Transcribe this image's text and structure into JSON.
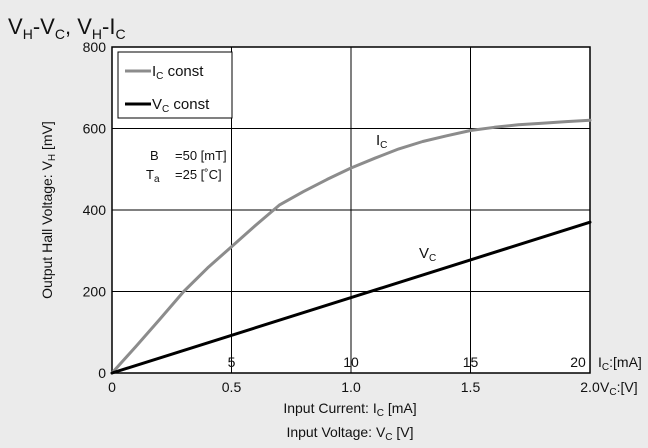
{
  "chart_data": {
    "type": "line",
    "title": {
      "base": "V",
      "sub_h": "H",
      "dash": "-",
      "sub_c": "C",
      "comma": ", "
    },
    "y_axis": {
      "label": "Output Hall Voltage: V",
      "label_sub": "H",
      "label_unit": " [mV]",
      "range": [
        0,
        800
      ],
      "ticks": [
        0,
        200,
        400,
        600,
        800
      ],
      "tick_labels": [
        "0",
        "200",
        "400",
        "600",
        "800"
      ]
    },
    "x_axis_current": {
      "label": "Input Current: I",
      "label_sub": "C",
      "label_unit": " [mA]",
      "range": [
        0,
        20
      ],
      "ticks": [
        5,
        10,
        15,
        20
      ],
      "tick_labels": [
        "5",
        "10",
        "15",
        "20"
      ],
      "unit_tag": "I",
      "unit_tag_sub": "C",
      "unit_tag_tail": ":[mA]"
    },
    "x_axis_voltage": {
      "label": "Input Voltage: V",
      "label_sub": "C",
      "label_unit": " [V]",
      "range": [
        0,
        2.0
      ],
      "ticks": [
        0,
        0.5,
        1.0,
        1.5,
        2.0
      ],
      "tick_labels": [
        "0",
        "0.5",
        "1.0",
        "1.5",
        "2.0"
      ],
      "unit_tag": "V",
      "unit_tag_sub": "C",
      "unit_tag_tail": ":[V]"
    },
    "grid": true,
    "legend_position": "top-left",
    "series": [
      {
        "name": "I",
        "name_sub": "C",
        "legend_text": " const",
        "x_axis": "current",
        "x_unit": "mA",
        "color": "#8c8c8c",
        "x": [
          0,
          1,
          2,
          3,
          4,
          5,
          6,
          7,
          8,
          9,
          10,
          11,
          12,
          13,
          14,
          15,
          16,
          17,
          18,
          19,
          20
        ],
        "y": [
          0,
          65,
          132,
          200,
          258,
          310,
          362,
          412,
          445,
          475,
          503,
          527,
          550,
          568,
          582,
          595,
          603,
          609,
          613,
          617,
          620
        ]
      },
      {
        "name": "V",
        "name_sub": "C",
        "legend_text": " const",
        "x_axis": "voltage",
        "x_unit": "V",
        "color": "#000000",
        "x": [
          0,
          2.0
        ],
        "y": [
          0,
          370
        ]
      }
    ],
    "annotations": {
      "b_label": "B",
      "b_value": "=50 [mT]",
      "ta_label": "T",
      "ta_sub": "a",
      "ta_value": "=25 [˚C]"
    }
  }
}
